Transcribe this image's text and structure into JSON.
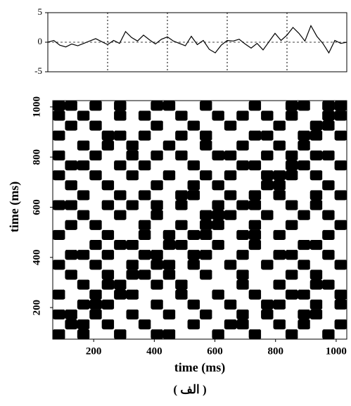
{
  "chart_data": [
    {
      "type": "line",
      "x": [
        0,
        20,
        40,
        60,
        80,
        100,
        120,
        140,
        160,
        180,
        200,
        220,
        240,
        260,
        280,
        300,
        320,
        340,
        360,
        380,
        400,
        420,
        440,
        460,
        480,
        500,
        520,
        540,
        560,
        580,
        600,
        620,
        640,
        660,
        680,
        700,
        720,
        740,
        760,
        780,
        800,
        820,
        840,
        860,
        880,
        900,
        920,
        940,
        960,
        980,
        1000
      ],
      "series": [
        {
          "color": "#000000",
          "values": [
            0,
            0.3,
            -0.5,
            -0.8,
            -0.3,
            -0.6,
            -0.2,
            0.2,
            0.6,
            0.1,
            -0.4,
            0.3,
            -0.2,
            1.8,
            0.8,
            0.2,
            1.2,
            0.4,
            -0.3,
            0.5,
            0.9,
            0.2,
            -0.2,
            -0.6,
            1.0,
            -0.4,
            0.3,
            -1.2,
            -1.8,
            -0.5,
            0.3,
            0.2,
            0.5,
            -0.3,
            -1.0,
            -0.2,
            -1.3,
            0.1,
            1.5,
            0.3,
            1.2,
            2.5,
            1.5,
            0.2,
            2.8,
            1.0,
            -0.2,
            -1.8,
            0.3,
            -0.2,
            0
          ]
        }
      ],
      "xlim": [
        0,
        1000
      ],
      "xticks": [
        200,
        400,
        600,
        800,
        1000
      ],
      "show_xtick_labels": false,
      "ylim": [
        -5,
        5
      ],
      "yticks": [
        5,
        0,
        -5
      ],
      "zero_line": true,
      "grid": true
    },
    {
      "type": "heatmap",
      "xlabel": "time (ms)",
      "ylabel": "time (ms)",
      "xlim": [
        65,
        1035
      ],
      "ylim": [
        74,
        1025
      ],
      "xticks": [
        200,
        400,
        600,
        800,
        1000
      ],
      "yticks": [
        200,
        400,
        600,
        800,
        1000
      ],
      "colors": [
        "#ffffff",
        "#000000"
      ],
      "z": [
        [
          1,
          0,
          1,
          0,
          0,
          1,
          0,
          0,
          1,
          1,
          0,
          0,
          0,
          1,
          0,
          0,
          1,
          0,
          0,
          1,
          0,
          0,
          1,
          0
        ],
        [
          0,
          1,
          1,
          0,
          1,
          0,
          0,
          1,
          0,
          0,
          0,
          1,
          0,
          0,
          1,
          1,
          0,
          0,
          1,
          0,
          1,
          0,
          0,
          1
        ],
        [
          1,
          1,
          0,
          1,
          0,
          0,
          1,
          0,
          0,
          1,
          0,
          0,
          1,
          0,
          0,
          1,
          0,
          1,
          0,
          0,
          1,
          1,
          0,
          0
        ],
        [
          0,
          0,
          1,
          1,
          1,
          0,
          0,
          0,
          1,
          0,
          0,
          1,
          0,
          0,
          1,
          0,
          0,
          1,
          1,
          0,
          0,
          1,
          0,
          1
        ],
        [
          1,
          0,
          0,
          1,
          0,
          1,
          1,
          0,
          0,
          0,
          1,
          0,
          0,
          1,
          0,
          0,
          1,
          0,
          0,
          1,
          1,
          0,
          0,
          1
        ],
        [
          0,
          0,
          1,
          0,
          1,
          1,
          0,
          0,
          1,
          0,
          1,
          0,
          0,
          0,
          0,
          1,
          0,
          0,
          1,
          0,
          0,
          1,
          1,
          0
        ],
        [
          0,
          1,
          0,
          0,
          1,
          0,
          1,
          1,
          0,
          1,
          0,
          0,
          1,
          0,
          0,
          1,
          0,
          0,
          0,
          1,
          0,
          1,
          0,
          0
        ],
        [
          1,
          0,
          0,
          1,
          0,
          0,
          1,
          0,
          1,
          1,
          0,
          1,
          0,
          0,
          1,
          0,
          0,
          1,
          0,
          0,
          1,
          0,
          0,
          1
        ],
        [
          0,
          1,
          1,
          0,
          1,
          0,
          0,
          1,
          1,
          0,
          0,
          1,
          1,
          0,
          0,
          1,
          0,
          0,
          1,
          1,
          0,
          0,
          1,
          0
        ],
        [
          0,
          0,
          0,
          1,
          0,
          1,
          1,
          0,
          0,
          1,
          1,
          0,
          0,
          1,
          0,
          0,
          1,
          0,
          0,
          0,
          1,
          1,
          0,
          0
        ],
        [
          1,
          0,
          0,
          0,
          1,
          0,
          0,
          1,
          0,
          1,
          0,
          1,
          1,
          0,
          0,
          1,
          1,
          0,
          1,
          0,
          0,
          0,
          1,
          0
        ],
        [
          0,
          1,
          0,
          1,
          0,
          0,
          0,
          1,
          0,
          0,
          1,
          0,
          1,
          1,
          0,
          0,
          1,
          0,
          0,
          1,
          0,
          0,
          0,
          1
        ],
        [
          0,
          0,
          1,
          0,
          0,
          1,
          0,
          0,
          1,
          0,
          0,
          0,
          1,
          1,
          1,
          0,
          0,
          1,
          0,
          0,
          1,
          0,
          1,
          0
        ],
        [
          1,
          1,
          0,
          0,
          1,
          0,
          1,
          0,
          1,
          0,
          1,
          0,
          0,
          1,
          0,
          1,
          1,
          0,
          0,
          1,
          0,
          1,
          0,
          0
        ],
        [
          0,
          0,
          1,
          0,
          0,
          1,
          0,
          1,
          0,
          0,
          1,
          1,
          0,
          0,
          1,
          0,
          1,
          0,
          1,
          0,
          0,
          1,
          0,
          1
        ],
        [
          0,
          1,
          0,
          0,
          1,
          0,
          0,
          0,
          1,
          0,
          0,
          1,
          0,
          1,
          0,
          0,
          0,
          1,
          1,
          0,
          0,
          0,
          1,
          0
        ],
        [
          1,
          0,
          0,
          1,
          0,
          0,
          1,
          0,
          0,
          1,
          0,
          0,
          1,
          0,
          1,
          0,
          0,
          1,
          1,
          1,
          0,
          1,
          0,
          0
        ],
        [
          0,
          1,
          1,
          0,
          0,
          1,
          0,
          1,
          0,
          0,
          0,
          1,
          0,
          0,
          0,
          1,
          1,
          0,
          0,
          1,
          1,
          0,
          0,
          1
        ],
        [
          1,
          0,
          0,
          1,
          0,
          0,
          1,
          0,
          1,
          0,
          1,
          0,
          0,
          1,
          1,
          0,
          0,
          1,
          0,
          1,
          0,
          1,
          1,
          0
        ],
        [
          0,
          0,
          1,
          0,
          1,
          0,
          1,
          0,
          0,
          1,
          0,
          0,
          1,
          0,
          0,
          1,
          0,
          0,
          1,
          0,
          1,
          0,
          0,
          0
        ],
        [
          1,
          0,
          0,
          0,
          1,
          1,
          0,
          1,
          0,
          0,
          1,
          0,
          1,
          0,
          0,
          0,
          1,
          1,
          0,
          0,
          1,
          1,
          0,
          1
        ],
        [
          0,
          1,
          0,
          1,
          0,
          0,
          0,
          0,
          1,
          0,
          0,
          1,
          0,
          0,
          1,
          0,
          0,
          0,
          1,
          0,
          0,
          1,
          1,
          0
        ],
        [
          1,
          0,
          1,
          0,
          0,
          1,
          0,
          1,
          0,
          0,
          1,
          0,
          0,
          1,
          0,
          1,
          0,
          1,
          0,
          1,
          0,
          0,
          1,
          1
        ],
        [
          1,
          1,
          0,
          1,
          0,
          1,
          0,
          0,
          1,
          1,
          0,
          0,
          1,
          0,
          0,
          0,
          1,
          0,
          0,
          1,
          1,
          0,
          1,
          1
        ]
      ],
      "caption": "( الف )"
    }
  ]
}
